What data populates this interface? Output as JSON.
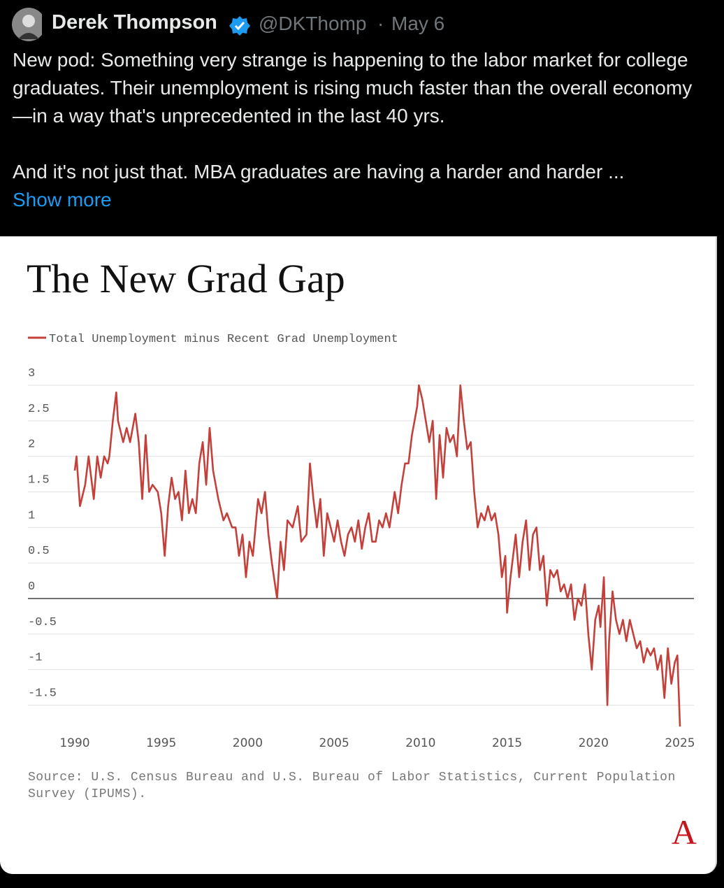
{
  "tweet": {
    "name": "Derek Thompson",
    "handle": "@DKThomp",
    "date": "May 6",
    "text": [
      "New pod: Something very strange is happening to the labor market for college graduates. Their unemployment is rising much faster than the overall economy—in a way that's unprecedented in the last 40 yrs.",
      "And it's not just that. MBA graduates are having a harder and harder ..."
    ],
    "show_more": "Show more"
  },
  "chart_data": {
    "type": "line",
    "title": "The New Grad Gap",
    "source": "Source: U.S. Census Bureau and U.S. Bureau of Labor Statistics, Current Population Survey (IPUMS).",
    "logo": "A",
    "x": [
      1990.0,
      1990.1,
      1990.3,
      1990.6,
      1990.8,
      1991.0,
      1991.1,
      1991.3,
      1991.5,
      1991.7,
      1991.9,
      1992.0,
      1992.2,
      1992.4,
      1992.5,
      1992.8,
      1993.0,
      1993.2,
      1993.5,
      1993.7,
      1993.9,
      1994.1,
      1994.3,
      1994.5,
      1994.8,
      1995.0,
      1995.2,
      1995.4,
      1995.6,
      1995.8,
      1996.0,
      1996.2,
      1996.4,
      1996.6,
      1996.8,
      1997.0,
      1997.2,
      1997.4,
      1997.6,
      1997.8,
      1998.0,
      1998.3,
      1998.6,
      1998.8,
      1999.1,
      1999.3,
      1999.5,
      1999.7,
      1999.9,
      2000.1,
      2000.3,
      2000.6,
      2000.8,
      2001.0,
      2001.2,
      2001.4,
      2001.7,
      2001.9,
      2002.1,
      2002.3,
      2002.6,
      2002.9,
      2003.1,
      2003.4,
      2003.6,
      2003.8,
      2004.0,
      2004.2,
      2004.4,
      2004.6,
      2004.8,
      2005.0,
      2005.2,
      2005.4,
      2005.6,
      2005.8,
      2006.0,
      2006.2,
      2006.4,
      2006.6,
      2006.8,
      2007.0,
      2007.2,
      2007.4,
      2007.6,
      2007.8,
      2008.0,
      2008.2,
      2008.5,
      2008.7,
      2008.9,
      2009.1,
      2009.3,
      2009.5,
      2009.8,
      2009.9,
      2010.1,
      2010.3,
      2010.5,
      2010.7,
      2010.9,
      2011.1,
      2011.3,
      2011.5,
      2011.7,
      2011.9,
      2012.1,
      2012.3,
      2012.5,
      2012.7,
      2012.9,
      2013.1,
      2013.3,
      2013.5,
      2013.7,
      2013.9,
      2014.1,
      2014.3,
      2014.5,
      2014.7,
      2014.9,
      2015.0,
      2015.2,
      2015.5,
      2015.7,
      2015.9,
      2016.1,
      2016.3,
      2016.5,
      2016.7,
      2016.9,
      2017.1,
      2017.3,
      2017.5,
      2017.7,
      2017.9,
      2018.1,
      2018.3,
      2018.5,
      2018.7,
      2018.9,
      2019.1,
      2019.3,
      2019.5,
      2019.7,
      2019.9,
      2020.1,
      2020.3,
      2020.4,
      2020.6,
      2020.8,
      2020.9,
      2021.1,
      2021.3,
      2021.5,
      2021.7,
      2021.9,
      2022.1,
      2022.3,
      2022.5,
      2022.7,
      2022.9,
      2023.1,
      2023.3,
      2023.5,
      2023.7,
      2023.9,
      2024.1,
      2024.3,
      2024.5,
      2024.7,
      2024.85,
      2025.0
    ],
    "series": [
      {
        "name": "Total Unemployment minus Recent Grad Unemployment",
        "color": "#c4403a",
        "values": [
          1.8,
          2.0,
          1.3,
          1.6,
          2.0,
          1.6,
          1.4,
          2.0,
          1.7,
          2.0,
          1.9,
          2.0,
          2.5,
          2.9,
          2.5,
          2.2,
          2.4,
          2.2,
          2.6,
          2.2,
          1.4,
          2.3,
          1.5,
          1.6,
          1.5,
          1.2,
          0.6,
          1.3,
          1.7,
          1.4,
          1.5,
          1.1,
          1.8,
          1.2,
          1.4,
          1.2,
          1.9,
          2.2,
          1.6,
          2.4,
          1.8,
          1.4,
          1.1,
          1.2,
          1.0,
          1.0,
          0.6,
          0.9,
          0.3,
          0.8,
          0.6,
          1.4,
          1.2,
          1.5,
          0.9,
          0.5,
          0.0,
          0.8,
          0.4,
          1.1,
          1.0,
          1.3,
          0.8,
          0.9,
          1.9,
          1.4,
          1.0,
          1.4,
          0.6,
          1.2,
          1.0,
          0.8,
          1.1,
          0.8,
          0.6,
          0.9,
          1.0,
          0.8,
          1.1,
          0.7,
          1.0,
          1.2,
          0.8,
          0.8,
          1.1,
          1.0,
          1.2,
          1.0,
          1.5,
          1.2,
          1.6,
          1.9,
          1.9,
          2.3,
          2.7,
          3.0,
          2.8,
          2.5,
          2.2,
          2.5,
          1.4,
          2.3,
          1.7,
          2.4,
          2.2,
          2.3,
          2.0,
          3.0,
          2.5,
          2.1,
          2.2,
          1.5,
          1.0,
          1.2,
          1.1,
          1.3,
          1.1,
          1.2,
          0.9,
          0.3,
          0.6,
          -0.2,
          0.3,
          0.9,
          0.3,
          0.8,
          1.1,
          0.4,
          0.9,
          1.0,
          0.4,
          0.6,
          -0.1,
          0.4,
          0.3,
          0.4,
          0.1,
          0.2,
          0.0,
          0.2,
          -0.3,
          0.0,
          -0.1,
          0.2,
          -0.5,
          -1.0,
          -0.3,
          -0.1,
          -0.4,
          0.3,
          -1.5,
          -0.6,
          0.1,
          -0.3,
          -0.5,
          -0.3,
          -0.6,
          -0.3,
          -0.5,
          -0.7,
          -0.6,
          -0.9,
          -0.7,
          -0.8,
          -0.7,
          -1.0,
          -0.8,
          -1.4,
          -0.7,
          -1.2,
          -0.9,
          -0.8,
          -1.8
        ]
      }
    ],
    "xlim": [
      1990,
      2025
    ],
    "xticks": [
      1990,
      1995,
      2000,
      2005,
      2010,
      2015,
      2020,
      2025
    ],
    "ylim": [
      -1.8,
      3
    ],
    "yticks": [
      -1.5,
      -1,
      -0.5,
      0,
      0.5,
      1,
      1.5,
      2,
      2.5,
      3
    ],
    "grid": true
  }
}
